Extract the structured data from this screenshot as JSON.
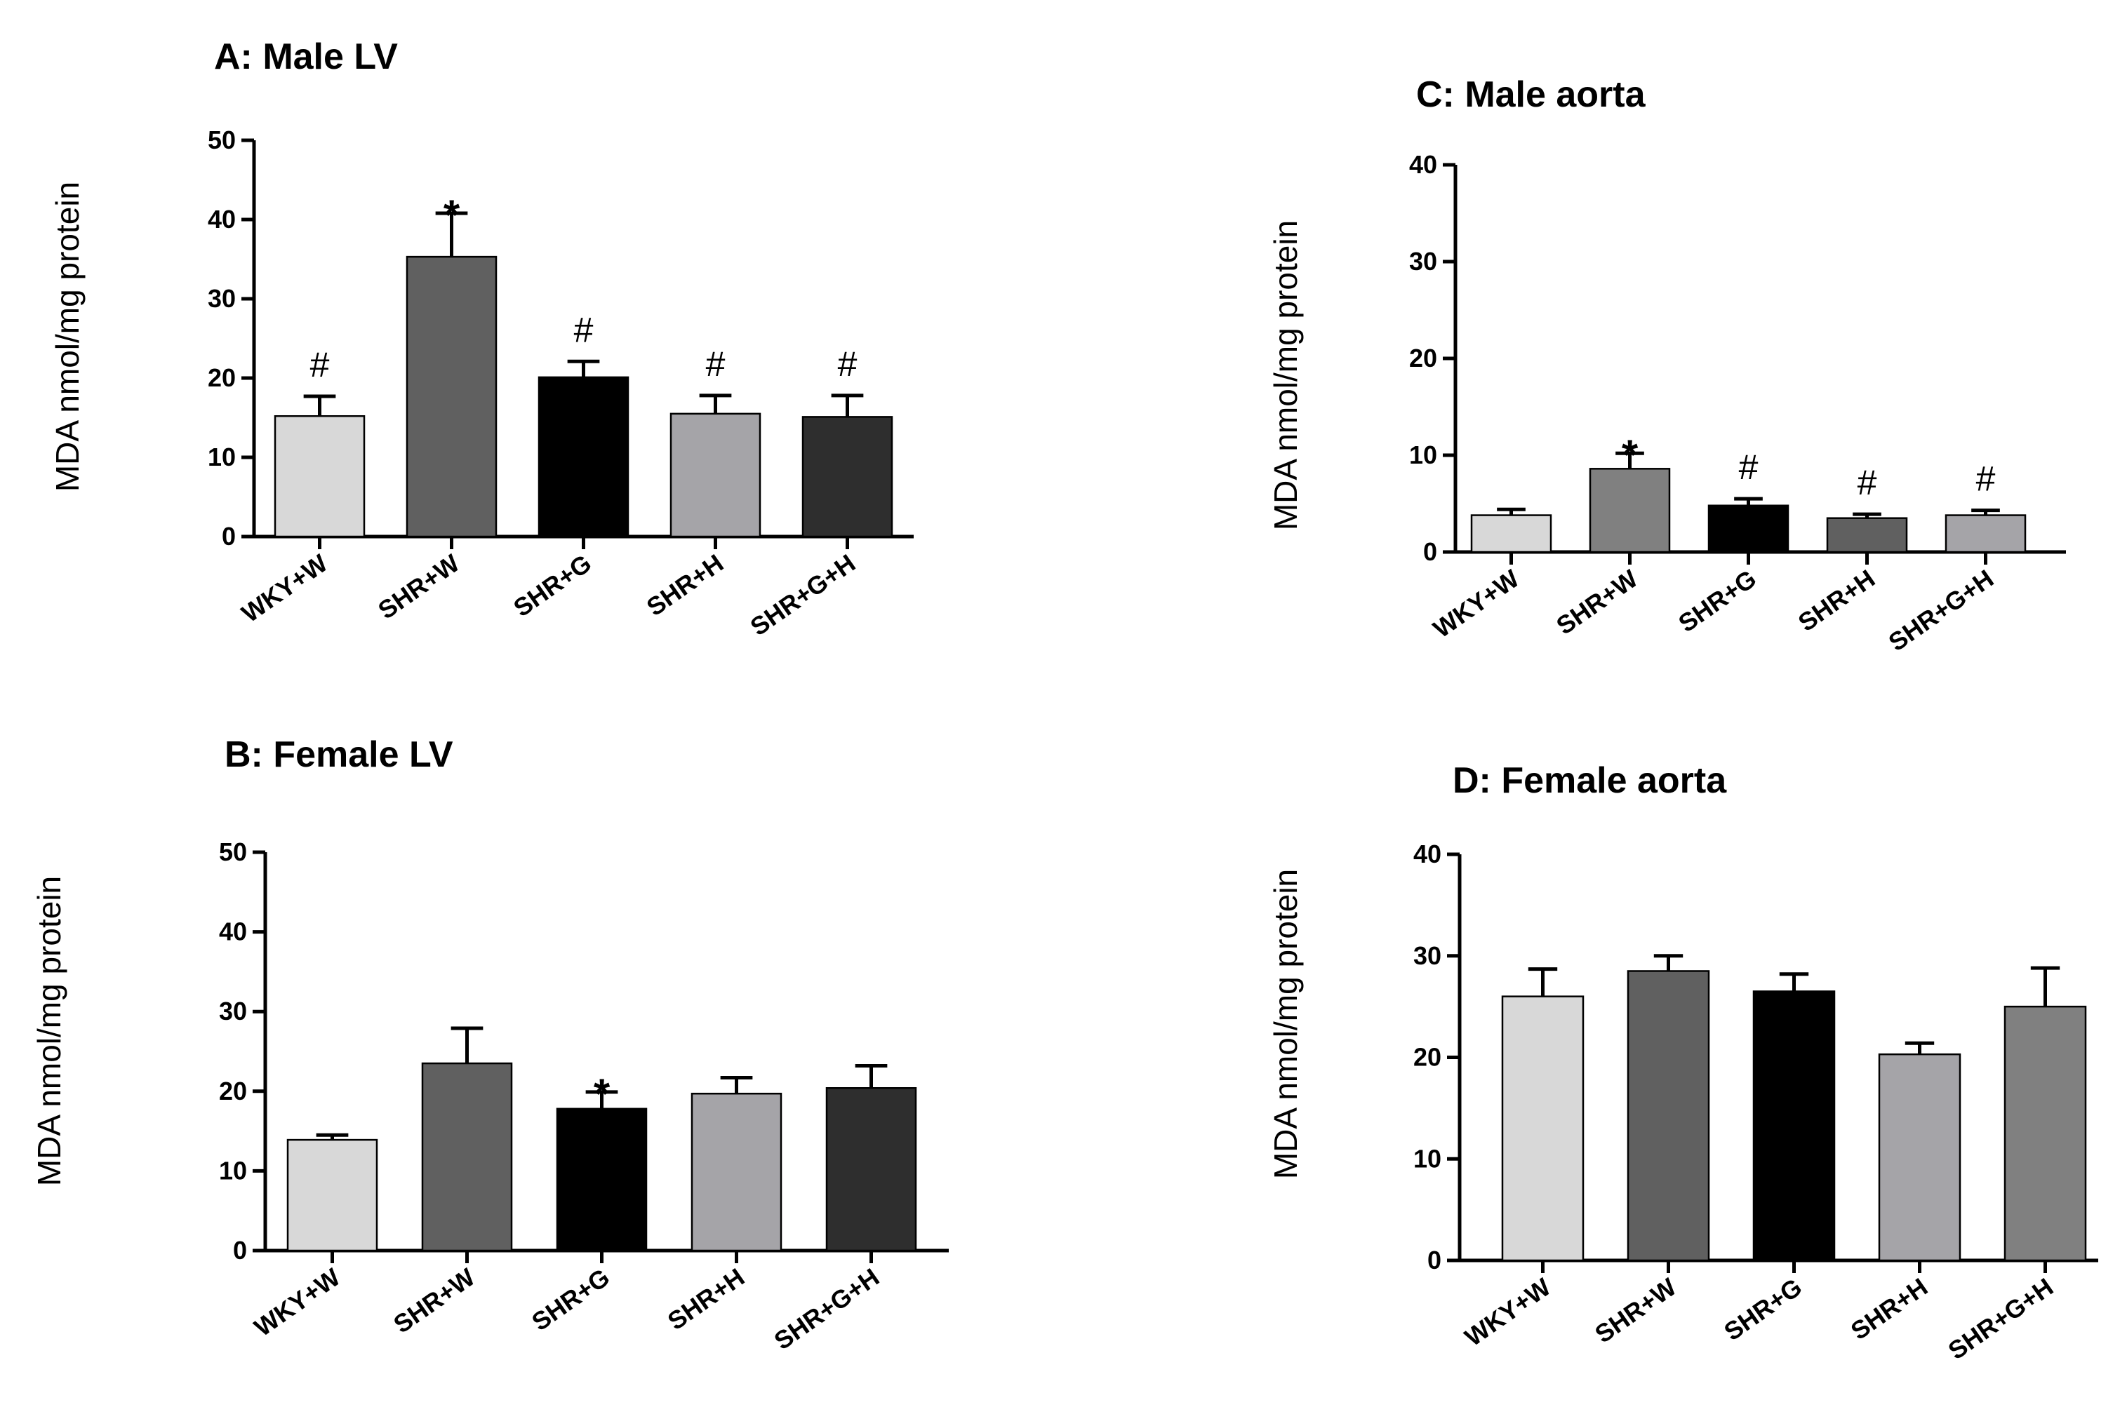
{
  "figure": {
    "bar_colors": {
      "WKY+W": "#d8d8d8",
      "SHR+W": "#606060",
      "SHR+G": "#000000",
      "SHR+H": "#a5a4a8",
      "SHR+G+H": "#2e2e2e"
    }
  },
  "chart_data": [
    {
      "panel": "A",
      "type": "bar",
      "title": "A: Male LV",
      "xlabel": "",
      "ylabel": "MDA nmol/mg protein",
      "ylim": [
        0,
        50
      ],
      "yticks": [
        "0",
        "10",
        "20",
        "30",
        "40",
        "50"
      ],
      "categories": [
        "WKY+W",
        "SHR+W",
        "SHR+G",
        "SHR+H",
        "SHR+G+H"
      ],
      "values": [
        15.2,
        35.3,
        20.1,
        15.5,
        15.1
      ],
      "errors": [
        2.5,
        5.5,
        2.0,
        2.3,
        2.7
      ],
      "annotations": [
        "#",
        "*",
        "#",
        "#",
        "#"
      ],
      "colors": [
        "#d8d8d8",
        "#606060",
        "#000000",
        "#a5a4a8",
        "#2e2e2e"
      ]
    },
    {
      "panel": "B",
      "type": "bar",
      "title": "B: Female LV",
      "xlabel": "",
      "ylabel": "MDA nmol/mg protein",
      "ylim": [
        0,
        50
      ],
      "yticks": [
        "0",
        "10",
        "20",
        "30",
        "40",
        "50"
      ],
      "categories": [
        "WKY+W",
        "SHR+W",
        "SHR+G",
        "SHR+H",
        "SHR+G+H"
      ],
      "values": [
        13.9,
        23.5,
        17.8,
        19.7,
        20.4
      ],
      "errors": [
        0.6,
        4.4,
        2.1,
        2.0,
        2.8
      ],
      "annotations": [
        "",
        "",
        "*",
        "",
        ""
      ],
      "colors": [
        "#d8d8d8",
        "#606060",
        "#000000",
        "#a5a4a8",
        "#2e2e2e"
      ]
    },
    {
      "panel": "C",
      "type": "bar",
      "title": "C: Male aorta",
      "xlabel": "",
      "ylabel": "MDA nmol/mg protein",
      "ylim": [
        0,
        40
      ],
      "yticks": [
        "0",
        "10",
        "20",
        "30",
        "40"
      ],
      "categories": [
        "WKY+W",
        "SHR+W",
        "SHR+G",
        "SHR+H",
        "SHR+G+H"
      ],
      "values": [
        3.8,
        8.6,
        4.8,
        3.5,
        3.8
      ],
      "errors": [
        0.6,
        1.6,
        0.7,
        0.4,
        0.5
      ],
      "annotations": [
        "",
        "*",
        "#",
        "#",
        "#"
      ],
      "colors": [
        "#d8d8d8",
        "#808080",
        "#000000",
        "#606060",
        "#a5a4a8"
      ]
    },
    {
      "panel": "D",
      "type": "bar",
      "title": "D: Female aorta",
      "xlabel": "",
      "ylabel": "MDA nmol/mg protein",
      "ylim": [
        0,
        40
      ],
      "yticks": [
        "0",
        "10",
        "20",
        "30",
        "40"
      ],
      "categories": [
        "WKY+W",
        "SHR+W",
        "SHR+G",
        "SHR+H",
        "SHR+G+H"
      ],
      "values": [
        26.0,
        28.5,
        26.5,
        20.3,
        25.0
      ],
      "errors": [
        2.7,
        1.5,
        1.7,
        1.1,
        3.8
      ],
      "annotations": [
        "",
        "",
        "",
        "",
        ""
      ],
      "colors": [
        "#d8d8d8",
        "#606060",
        "#000000",
        "#a5a4a8",
        "#808080"
      ]
    }
  ]
}
